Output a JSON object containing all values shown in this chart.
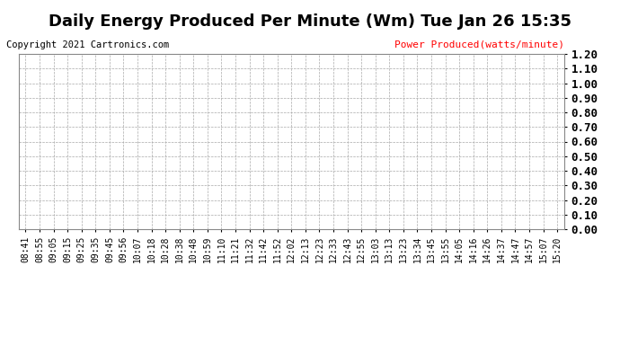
{
  "title": "Daily Energy Produced Per Minute (Wm) Tue Jan 26 15:35",
  "copyright": "Copyright 2021 Cartronics.com",
  "legend_label": "Power Produced(watts/minute)",
  "legend_color": "#ff0000",
  "copyright_color": "#000000",
  "background_color": "#ffffff",
  "plot_bg_color": "#ffffff",
  "grid_color": "#aaaaaa",
  "ylim": [
    0.0,
    1.2
  ],
  "yticks": [
    0.0,
    0.1,
    0.2,
    0.3,
    0.4,
    0.5,
    0.6,
    0.7,
    0.8,
    0.9,
    1.0,
    1.1,
    1.2
  ],
  "xtick_labels": [
    "08:41",
    "08:55",
    "09:05",
    "09:15",
    "09:25",
    "09:35",
    "09:45",
    "09:56",
    "10:07",
    "10:18",
    "10:28",
    "10:38",
    "10:48",
    "10:59",
    "11:10",
    "11:21",
    "11:32",
    "11:42",
    "11:52",
    "12:02",
    "12:13",
    "12:23",
    "12:33",
    "12:43",
    "12:55",
    "13:03",
    "13:13",
    "13:23",
    "13:34",
    "13:45",
    "13:55",
    "14:05",
    "14:16",
    "14:26",
    "14:37",
    "14:47",
    "14:57",
    "15:07",
    "15:20"
  ],
  "title_fontsize": 13,
  "tick_fontsize": 7,
  "copyright_fontsize": 7.5,
  "legend_fontsize": 8,
  "grid_linestyle": "--",
  "grid_linewidth": 0.5
}
